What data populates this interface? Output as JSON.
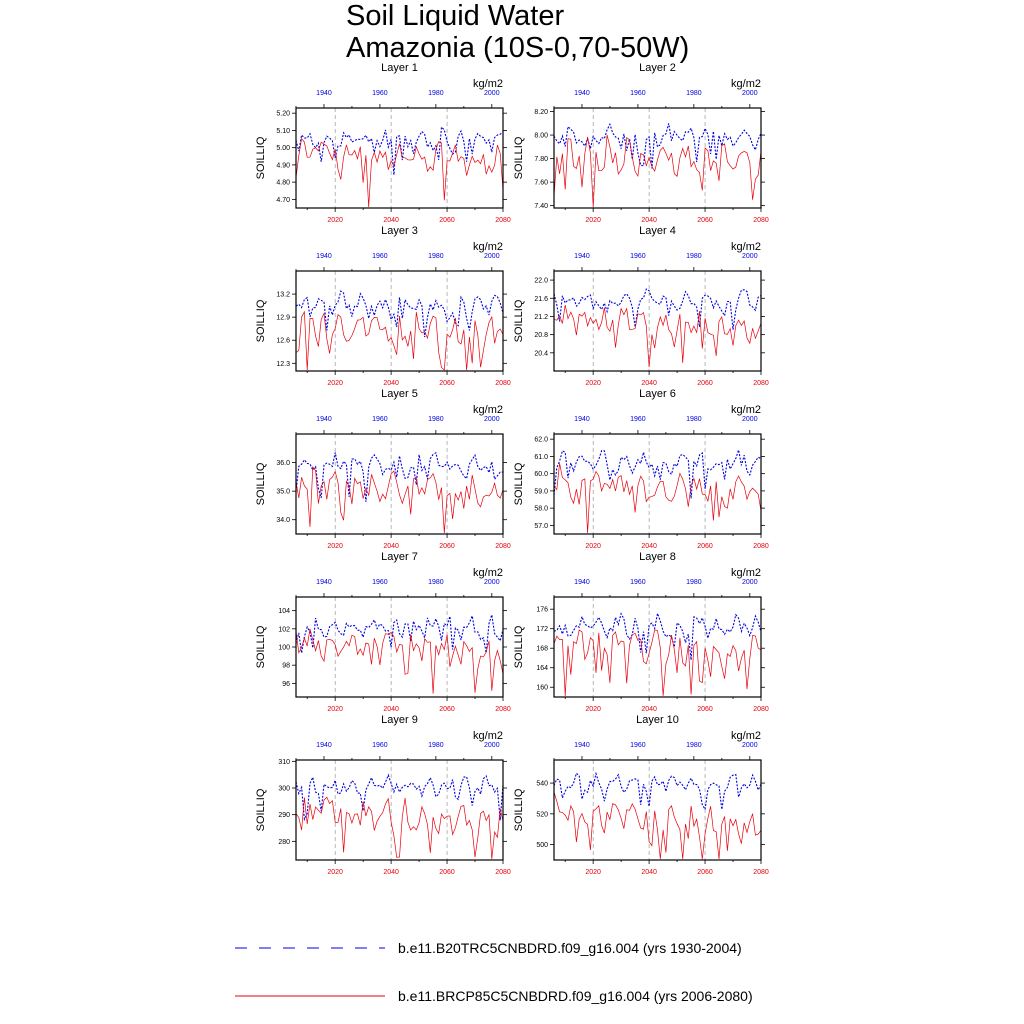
{
  "figure": {
    "title_line1": "Soil Liquid Water",
    "title_line2": "Amazonia (10S-0,70-50W)"
  },
  "legend": {
    "items": [
      {
        "label": "b.e11.B20TRC5CNBDRD.f09_g16.004 (yrs 1930-2004)",
        "color": "#0000e0",
        "style": "dashed"
      },
      {
        "label": "b.e11.BRCP85C5CNBDRD.f09_g16.004 (yrs 2006-2080)",
        "color": "#e8000b",
        "style": "solid"
      }
    ]
  },
  "colors": {
    "historical": "#0000e0",
    "future": "#e8000b"
  },
  "chart_data": [
    {
      "type": "line",
      "title": "Layer 1",
      "ylabel": "SOILLIQ",
      "units": "kg/m2",
      "ylim": [
        4.65,
        5.23
      ],
      "yticks": [
        4.7,
        4.8,
        4.9,
        5.0,
        5.1,
        5.2
      ],
      "ytick_labels": [
        "4.70",
        "4.80",
        "4.90",
        "5.00",
        "5.10",
        "5.20"
      ],
      "x_bottom": {
        "label_years": [
          2020,
          2040,
          2060,
          2080
        ],
        "range": [
          2006,
          2080
        ]
      },
      "x_top": {
        "label_years": [
          1940,
          1960,
          1980,
          2000
        ],
        "range": [
          1930,
          2004
        ]
      },
      "series": [
        {
          "name": "historical",
          "mean": 5.04,
          "amp": 0.06,
          "seed": 11,
          "drift": 0.0
        },
        {
          "name": "future",
          "mean": 4.98,
          "amp": 0.08,
          "seed": 12,
          "drift": -0.06
        }
      ]
    },
    {
      "type": "line",
      "title": "Layer 2",
      "ylabel": "SOILLIQ",
      "units": "kg/m2",
      "ylim": [
        7.38,
        8.23
      ],
      "yticks": [
        7.4,
        7.6,
        7.8,
        8.0,
        8.2
      ],
      "ytick_labels": [
        "7.40",
        "7.60",
        "7.80",
        "8.00",
        "8.20"
      ],
      "x_bottom": {
        "label_years": [
          2020,
          2040,
          2060,
          2080
        ],
        "range": [
          2006,
          2080
        ]
      },
      "x_top": {
        "label_years": [
          1940,
          1960,
          1980,
          2000
        ],
        "range": [
          1930,
          2004
        ]
      },
      "series": [
        {
          "name": "historical",
          "mean": 7.98,
          "amp": 0.09,
          "seed": 21,
          "drift": 0.0
        },
        {
          "name": "future",
          "mean": 7.85,
          "amp": 0.13,
          "seed": 22,
          "drift": -0.1
        }
      ]
    },
    {
      "type": "line",
      "title": "Layer 3",
      "ylabel": "SOILLIQ",
      "units": "kg/m2",
      "ylim": [
        12.2,
        13.5
      ],
      "yticks": [
        12.3,
        12.6,
        12.9,
        13.2
      ],
      "ytick_labels": [
        "12.3",
        "12.6",
        "12.9",
        "13.2"
      ],
      "x_bottom": {
        "label_years": [
          2020,
          2040,
          2060,
          2080
        ],
        "range": [
          2006,
          2080
        ]
      },
      "x_top": {
        "label_years": [
          1940,
          1960,
          1980,
          2000
        ],
        "range": [
          1930,
          2004
        ]
      },
      "series": [
        {
          "name": "historical",
          "mean": 13.05,
          "amp": 0.14,
          "seed": 31,
          "drift": 0.0
        },
        {
          "name": "future",
          "mean": 12.85,
          "amp": 0.19,
          "seed": 32,
          "drift": -0.15
        }
      ]
    },
    {
      "type": "line",
      "title": "Layer 4",
      "ylabel": "SOILLIQ",
      "units": "kg/m2",
      "ylim": [
        20.0,
        22.2
      ],
      "yticks": [
        20.4,
        20.8,
        21.2,
        21.6,
        22.0
      ],
      "ytick_labels": [
        "20.4",
        "20.8",
        "21.2",
        "21.6",
        "22.0"
      ],
      "x_bottom": {
        "label_years": [
          2020,
          2040,
          2060,
          2080
        ],
        "range": [
          2006,
          2080
        ]
      },
      "x_top": {
        "label_years": [
          1940,
          1960,
          1980,
          2000
        ],
        "range": [
          1930,
          2004
        ]
      },
      "series": [
        {
          "name": "historical",
          "mean": 21.55,
          "amp": 0.22,
          "seed": 41,
          "drift": 0.0
        },
        {
          "name": "future",
          "mean": 21.15,
          "amp": 0.3,
          "seed": 42,
          "drift": -0.25
        }
      ]
    },
    {
      "type": "line",
      "title": "Layer 5",
      "ylabel": "SOILLIQ",
      "units": "kg/m2",
      "ylim": [
        33.5,
        37.0
      ],
      "yticks": [
        34.0,
        35.0,
        36.0
      ],
      "ytick_labels": [
        "34.0",
        "35.0",
        "36.0"
      ],
      "x_bottom": {
        "label_years": [
          2020,
          2040,
          2060,
          2080
        ],
        "range": [
          2006,
          2080
        ]
      },
      "x_top": {
        "label_years": [
          1940,
          1960,
          1980,
          2000
        ],
        "range": [
          1930,
          2004
        ]
      },
      "series": [
        {
          "name": "historical",
          "mean": 35.9,
          "amp": 0.38,
          "seed": 51,
          "drift": 0.0
        },
        {
          "name": "future",
          "mean": 35.3,
          "amp": 0.5,
          "seed": 52,
          "drift": -0.4
        }
      ]
    },
    {
      "type": "line",
      "title": "Layer 6",
      "ylabel": "SOILLIQ",
      "units": "kg/m2",
      "ylim": [
        56.5,
        62.3
      ],
      "yticks": [
        57.0,
        58.0,
        59.0,
        60.0,
        61.0,
        62.0
      ],
      "ytick_labels": [
        "57.0",
        "58.0",
        "59.0",
        "60.0",
        "61.0",
        "62.0"
      ],
      "x_bottom": {
        "label_years": [
          2020,
          2040,
          2060,
          2080
        ],
        "range": [
          2006,
          2080
        ]
      },
      "x_top": {
        "label_years": [
          1940,
          1960,
          1980,
          2000
        ],
        "range": [
          1930,
          2004
        ]
      },
      "series": [
        {
          "name": "historical",
          "mean": 60.6,
          "amp": 0.6,
          "seed": 61,
          "drift": 0.0
        },
        {
          "name": "future",
          "mean": 59.6,
          "amp": 0.8,
          "seed": 62,
          "drift": -0.7
        }
      ]
    },
    {
      "type": "line",
      "title": "Layer 7",
      "ylabel": "SOILLIQ",
      "units": "kg/m2",
      "ylim": [
        94.5,
        105.5
      ],
      "yticks": [
        96,
        98,
        100,
        102,
        104
      ],
      "ytick_labels": [
        "96",
        "98",
        "100",
        "102",
        "104"
      ],
      "x_bottom": {
        "label_years": [
          2020,
          2040,
          2060,
          2080
        ],
        "range": [
          2006,
          2080
        ]
      },
      "x_top": {
        "label_years": [
          1940,
          1960,
          1980,
          2000
        ],
        "range": [
          1930,
          2004
        ]
      },
      "series": [
        {
          "name": "historical",
          "mean": 102.2,
          "amp": 1.1,
          "seed": 71,
          "drift": 0.0
        },
        {
          "name": "future",
          "mean": 100.6,
          "amp": 1.5,
          "seed": 72,
          "drift": -1.2
        }
      ]
    },
    {
      "type": "line",
      "title": "Layer 8",
      "ylabel": "SOILLIQ",
      "units": "kg/m2",
      "ylim": [
        158,
        178.5
      ],
      "yticks": [
        160,
        164,
        168,
        172,
        176
      ],
      "ytick_labels": [
        "160",
        "164",
        "168",
        "172",
        "176"
      ],
      "x_bottom": {
        "label_years": [
          2020,
          2040,
          2060,
          2080
        ],
        "range": [
          2006,
          2080
        ]
      },
      "x_top": {
        "label_years": [
          1940,
          1960,
          1980,
          2000
        ],
        "range": [
          1930,
          2004
        ]
      },
      "series": [
        {
          "name": "historical",
          "mean": 172.5,
          "amp": 2.0,
          "seed": 81,
          "drift": 0.0
        },
        {
          "name": "future",
          "mean": 169.5,
          "amp": 2.8,
          "seed": 82,
          "drift": -2.5
        }
      ]
    },
    {
      "type": "line",
      "title": "Layer 9",
      "ylabel": "SOILLIQ",
      "units": "kg/m2",
      "ylim": [
        273,
        310.5
      ],
      "yticks": [
        280,
        290,
        300,
        310
      ],
      "ytick_labels": [
        "280",
        "290",
        "300",
        "310"
      ],
      "x_bottom": {
        "label_years": [
          2020,
          2040,
          2060,
          2080
        ],
        "range": [
          2006,
          2080
        ]
      },
      "x_top": {
        "label_years": [
          1940,
          1960,
          1980,
          2000
        ],
        "range": [
          1930,
          2004
        ]
      },
      "series": [
        {
          "name": "historical",
          "mean": 300.5,
          "amp": 3.5,
          "seed": 91,
          "drift": 0.0
        },
        {
          "name": "future",
          "mean": 292.0,
          "amp": 5.5,
          "seed": 92,
          "drift": -6.0
        }
      ]
    },
    {
      "type": "line",
      "title": "Layer 10",
      "ylabel": "SOILLIQ",
      "units": "kg/m2",
      "ylim": [
        490,
        555
      ],
      "yticks": [
        500,
        520,
        540
      ],
      "ytick_labels": [
        "500",
        "520",
        "540"
      ],
      "x_bottom": {
        "label_years": [
          2020,
          2040,
          2060,
          2080
        ],
        "range": [
          2006,
          2080
        ]
      },
      "x_top": {
        "label_years": [
          1940,
          1960,
          1980,
          2000
        ],
        "range": [
          1930,
          2004
        ]
      },
      "series": [
        {
          "name": "historical",
          "mean": 540.0,
          "amp": 5.0,
          "seed": 101,
          "drift": 0.0
        },
        {
          "name": "future",
          "mean": 522.0,
          "amp": 9.0,
          "seed": 102,
          "drift": -12.0
        }
      ]
    }
  ]
}
